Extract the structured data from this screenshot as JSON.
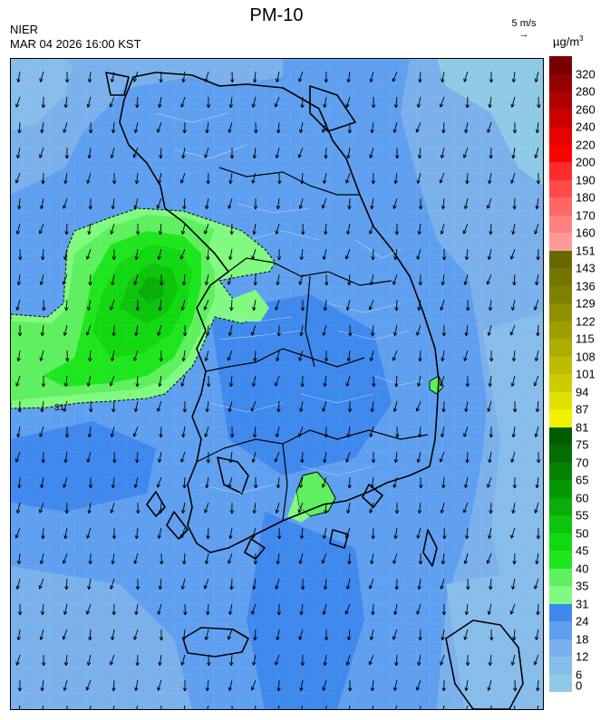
{
  "header": {
    "agency": "NIER",
    "datetime": "MAR 04 2026 16:00 KST",
    "title": "PM-10",
    "wind_reference": "5 m/s",
    "wind_reference_arrow": "→",
    "unit_base": "µg/m",
    "unit_exp": "3"
  },
  "map": {
    "contour_label": "31",
    "wind_direction_general": "north-to-south (northerly flow)"
  },
  "legend": {
    "bins": [
      {
        "label": "0",
        "color": "#8ecae6"
      },
      {
        "label": "6",
        "color": "#86bdea"
      },
      {
        "label": "12",
        "color": "#7ab0ec"
      },
      {
        "label": "18",
        "color": "#5f9ff0"
      },
      {
        "label": "24",
        "color": "#3f88ee"
      },
      {
        "label": "31",
        "color": "#80fa80"
      },
      {
        "label": "35",
        "color": "#5ef05e"
      },
      {
        "label": "40",
        "color": "#1ee61e"
      },
      {
        "label": "45",
        "color": "#12d812"
      },
      {
        "label": "50",
        "color": "#0bc40b"
      },
      {
        "label": "55",
        "color": "#08ad08"
      },
      {
        "label": "60",
        "color": "#059805"
      },
      {
        "label": "65",
        "color": "#038303"
      },
      {
        "label": "70",
        "color": "#026e02"
      },
      {
        "label": "75",
        "color": "#005c00"
      },
      {
        "label": "81",
        "color": "#f0f000"
      },
      {
        "label": "87",
        "color": "#e0e000"
      },
      {
        "label": "94",
        "color": "#cccc00"
      },
      {
        "label": "101",
        "color": "#bcbc00"
      },
      {
        "label": "108",
        "color": "#adad00"
      },
      {
        "label": "115",
        "color": "#9e9e00"
      },
      {
        "label": "122",
        "color": "#8f8f00"
      },
      {
        "label": "129",
        "color": "#808000"
      },
      {
        "label": "136",
        "color": "#747400"
      },
      {
        "label": "143",
        "color": "#686800"
      },
      {
        "label": "151",
        "color": "#ff9a9a"
      },
      {
        "label": "160",
        "color": "#ff8080"
      },
      {
        "label": "170",
        "color": "#ff6666"
      },
      {
        "label": "180",
        "color": "#ff4a4a"
      },
      {
        "label": "190",
        "color": "#ff2a2a"
      },
      {
        "label": "200",
        "color": "#ff0000"
      },
      {
        "label": "220",
        "color": "#e60000"
      },
      {
        "label": "240",
        "color": "#cc0000"
      },
      {
        "label": "260",
        "color": "#b00000"
      },
      {
        "label": "280",
        "color": "#940000"
      },
      {
        "label": "320",
        "color": "#780000"
      }
    ],
    "top_color": "#6a0000"
  }
}
